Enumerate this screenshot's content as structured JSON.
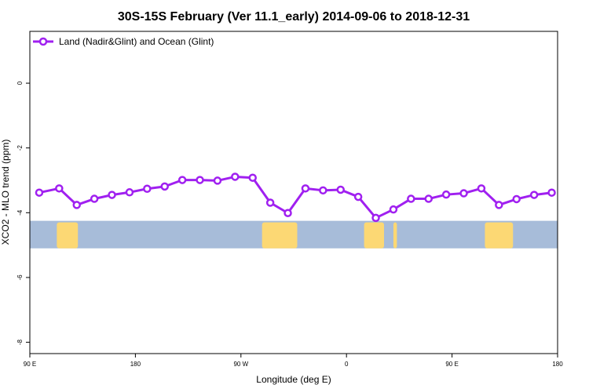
{
  "chart_data": {
    "type": "line",
    "title": "30S-15S February (Ver 11.1_early)   2014-09-06 to 2018-12-31",
    "xlabel": "Longitude (deg E)",
    "ylabel": "XCO2 - MLO trend (ppm)",
    "xlim": [
      90,
      540
    ],
    "ylim": [
      -8.35,
      1.6
    ],
    "x_ticks": [
      {
        "value": 90,
        "label": "90 E"
      },
      {
        "value": 180,
        "label": "180"
      },
      {
        "value": 270,
        "label": "90 W"
      },
      {
        "value": 360,
        "label": "0"
      },
      {
        "value": 450,
        "label": "90 E"
      },
      {
        "value": 540,
        "label": "180"
      }
    ],
    "y_ticks": [
      {
        "value": 0,
        "label": "0"
      },
      {
        "value": -2,
        "label": "-2"
      },
      {
        "value": -4,
        "label": "-4"
      },
      {
        "value": -6,
        "label": "-6"
      },
      {
        "value": -8,
        "label": "-8"
      }
    ],
    "grid": false,
    "legend_position": "top-left",
    "series": [
      {
        "name": "Land (Nadir&Glint) and Ocean (Glint)",
        "color": "#a020f0",
        "marker": "open-circle",
        "x": [
          98,
          115,
          130,
          145,
          160,
          175,
          190,
          205,
          220,
          235,
          250,
          265,
          280,
          295,
          310,
          325,
          340,
          355,
          370,
          385,
          400,
          415,
          430,
          445,
          460,
          475,
          490,
          505,
          520,
          535
        ],
        "y": [
          -3.38,
          -3.25,
          -3.76,
          -3.57,
          -3.45,
          -3.37,
          -3.26,
          -3.19,
          -2.99,
          -2.99,
          -3.01,
          -2.89,
          -2.92,
          -3.69,
          -4.01,
          -3.25,
          -3.31,
          -3.29,
          -3.51,
          -4.16,
          -3.9,
          -3.57,
          -3.57,
          -3.44,
          -3.4,
          -3.25,
          -3.76,
          -3.58,
          -3.45,
          -3.38
        ]
      }
    ],
    "background_map": {
      "lat_band": "30S-15S",
      "ylim": [
        -5.1,
        -4.25
      ],
      "ocean_color": "#a7bcd9",
      "land_color": "#fcd874",
      "land_lon_ranges": [
        [
          113,
          131
        ],
        [
          288,
          318
        ],
        [
          375,
          392
        ],
        [
          400,
          403
        ],
        [
          478,
          502
        ]
      ]
    }
  }
}
